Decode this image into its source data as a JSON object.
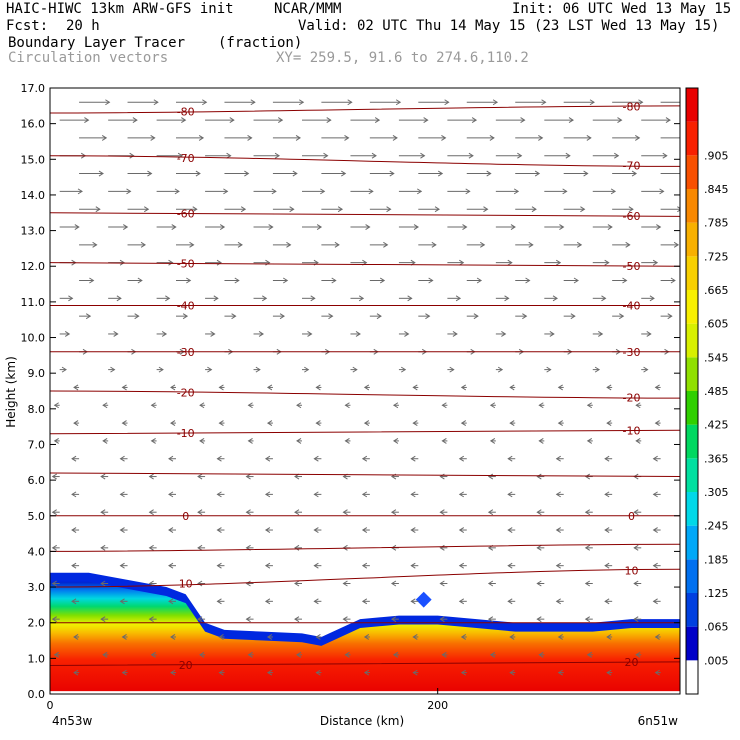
{
  "header": {
    "line1_left": "HAIC-HIWC 13km ARW-GFS init",
    "line1_mid": "NCAR/MMM",
    "line1_right": "Init: 06 UTC Wed 13 May 15",
    "line2_left": "Fcst:",
    "line2_fcst": "20 h",
    "line2_right": "Valid: 02 UTC Thu 14 May 15 (23 LST Wed 13 May 15)",
    "line3_left": "Boundary Layer Tracer",
    "line3_units": "(fraction)",
    "line4_left": "Circulation vectors",
    "line4_mid": "XY= 259.5, 91.6 to 274.6,110.2"
  },
  "chart_data": {
    "type": "heatmap",
    "title": "Boundary Layer Tracer (fraction)",
    "xlabel": "Distance (km)",
    "ylabel": "Height (km)",
    "xlim": [
      0,
      325
    ],
    "ylim": [
      0,
      17
    ],
    "x_tick_labels": [
      {
        "x": 0,
        "label": "0"
      },
      {
        "x": 200,
        "label": "200"
      }
    ],
    "x_endpoint_labels": {
      "left": "4n53w",
      "right": "6n51w"
    },
    "y_ticks": [
      0.0,
      1.0,
      2.0,
      3.0,
      4.0,
      5.0,
      6.0,
      7.0,
      8.0,
      9.0,
      10.0,
      11.0,
      12.0,
      13.0,
      14.0,
      15.0,
      16.0,
      17.0
    ],
    "y_tick_labels": [
      "0.0",
      "1.0",
      "2.0",
      "3.0",
      "4.0",
      "5.0",
      "6.0",
      "7.0",
      "8.0",
      "9.0",
      "10.0",
      "11.0",
      "12.0",
      "13.0",
      "14.0",
      "15.0",
      "16.0",
      "17.0"
    ],
    "colorbar": {
      "labels": [
        ".005",
        ".065",
        ".125",
        ".185",
        ".245",
        ".305",
        ".365",
        ".425",
        ".485",
        ".545",
        ".605",
        ".665",
        ".725",
        ".785",
        ".845",
        ".905"
      ],
      "colors": [
        "#ffffff",
        "#0000c8",
        "#0040e0",
        "#0070f0",
        "#00a8f8",
        "#00d8e8",
        "#00e0a0",
        "#00d860",
        "#30d000",
        "#90e000",
        "#d8f000",
        "#f8f000",
        "#f8d000",
        "#f8b000",
        "#f88800",
        "#f85000",
        "#f82000",
        "#e80000"
      ]
    },
    "temperature_contours": [
      {
        "label": "-80",
        "y_left": 16.3,
        "y_right": 16.5
      },
      {
        "label": "-70",
        "y_left": 15.1,
        "y_right": 14.8
      },
      {
        "label": "-60",
        "y_left": 13.5,
        "y_right": 13.4
      },
      {
        "label": "-50",
        "y_left": 12.1,
        "y_right": 12.0
      },
      {
        "label": "-40",
        "y_left": 10.9,
        "y_right": 10.9
      },
      {
        "label": "-30",
        "y_left": 9.6,
        "y_right": 9.6
      },
      {
        "label": "-20",
        "y_left": 8.5,
        "y_right": 8.3
      },
      {
        "label": "-10",
        "y_left": 7.3,
        "y_right": 7.4
      },
      {
        "label": "",
        "y_left": 6.2,
        "y_right": 6.1
      },
      {
        "label": "0",
        "y_left": 5.0,
        "y_right": 5.0
      },
      {
        "label": "",
        "y_left": 4.0,
        "y_right": 4.2
      },
      {
        "label": "10",
        "y_left": 3.0,
        "y_right": 3.5
      },
      {
        "label": "",
        "y_left": 2.0,
        "y_right": 2.0
      },
      {
        "label": "20",
        "y_left": 0.8,
        "y_right": 0.9
      }
    ],
    "tracer_top_profile": {
      "x": [
        0,
        20,
        40,
        60,
        70,
        75,
        80,
        90,
        110,
        130,
        140,
        160,
        180,
        200,
        220,
        240,
        260,
        280,
        300,
        325
      ],
      "z": [
        3.4,
        3.4,
        3.2,
        3.0,
        2.8,
        2.4,
        2.0,
        1.8,
        1.75,
        1.7,
        1.6,
        2.1,
        2.2,
        2.2,
        2.1,
        2.0,
        2.0,
        2.0,
        2.1,
        2.1
      ]
    }
  }
}
